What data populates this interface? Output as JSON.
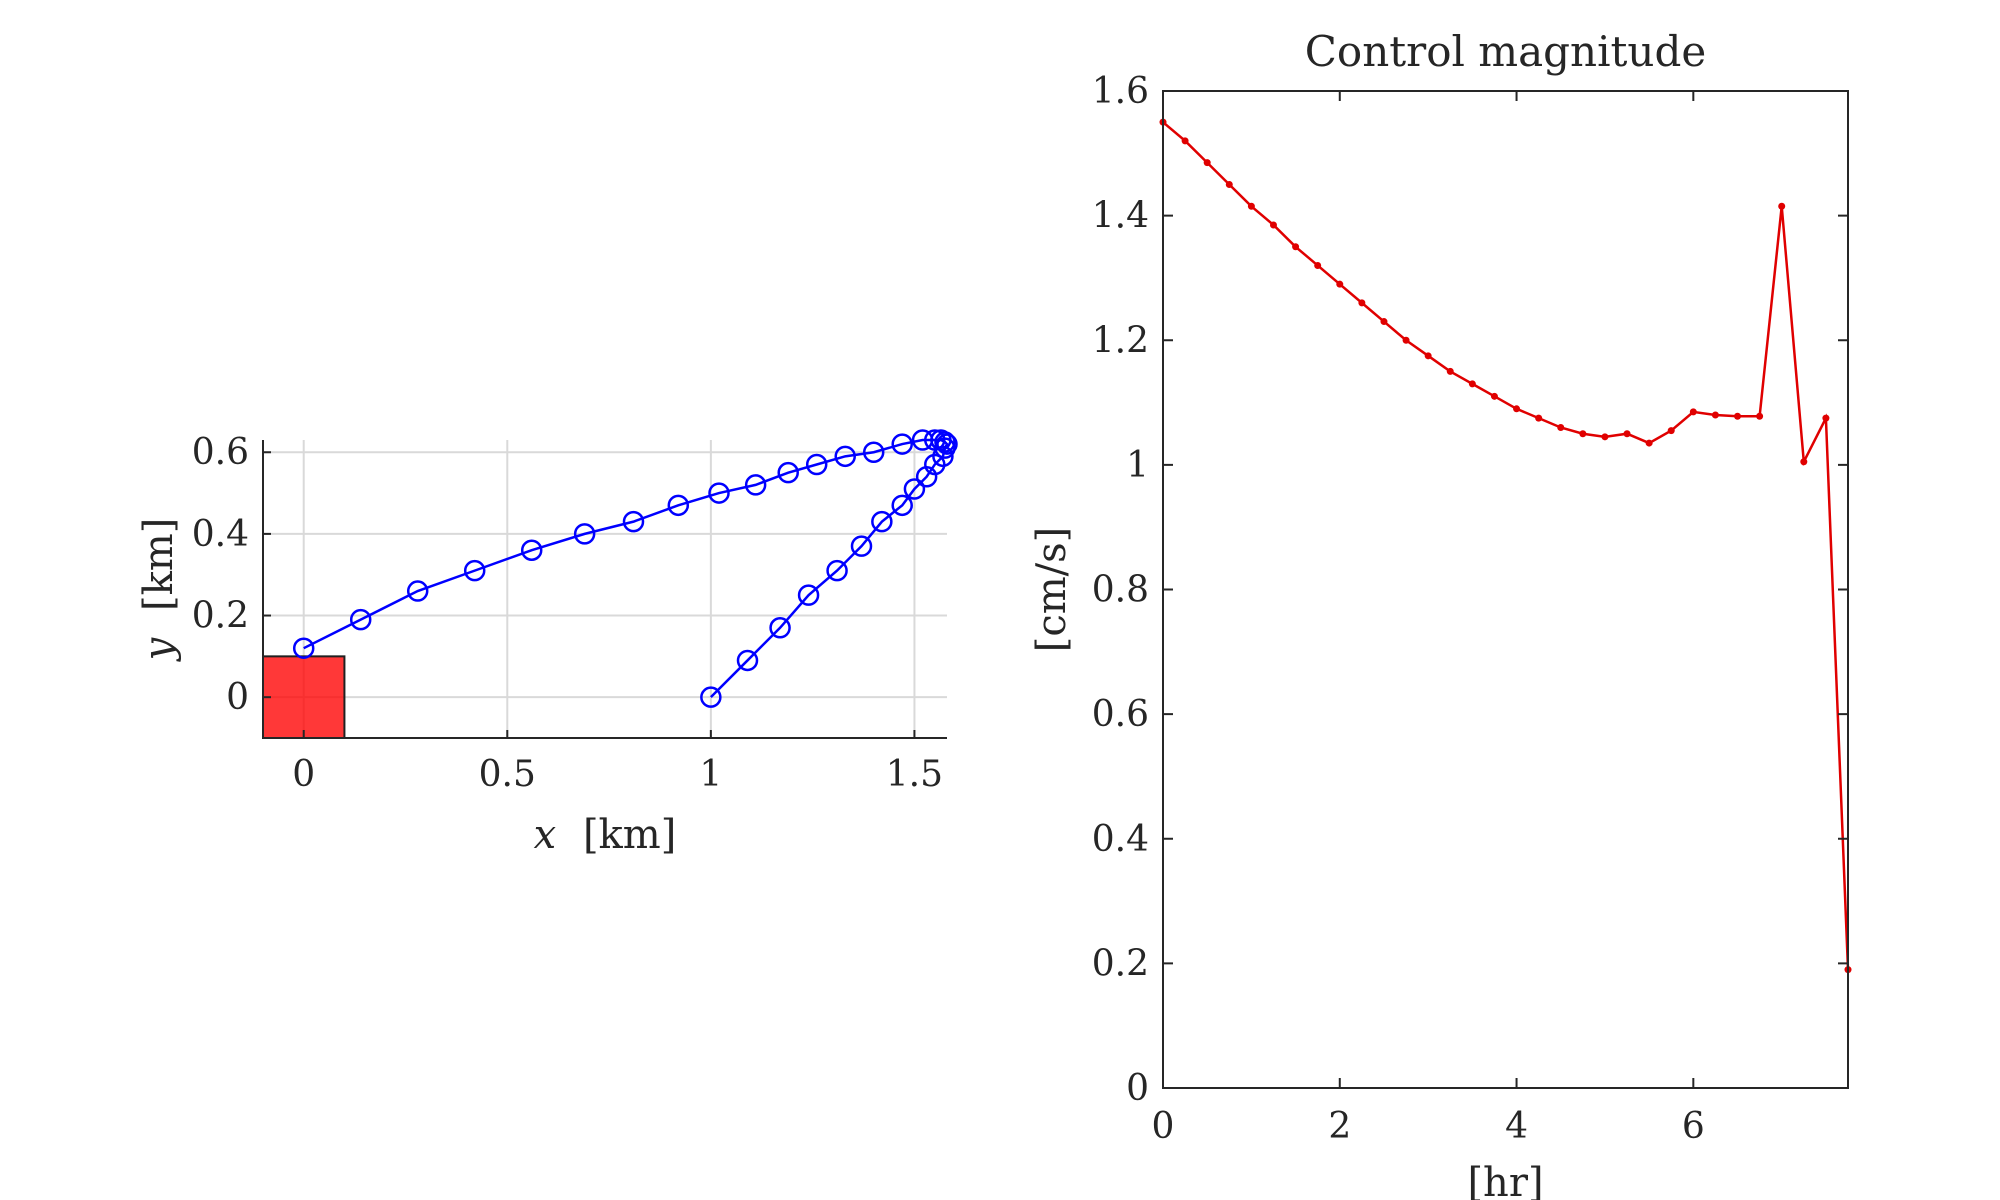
{
  "chart_data": [
    {
      "type": "line",
      "title": "",
      "xlabel_var": "x",
      "xlabel_unit": "[km]",
      "ylabel_var": "y",
      "ylabel_unit": "[km]",
      "xlim": [
        -0.1,
        1.58
      ],
      "ylim": [
        -0.1,
        0.63
      ],
      "xticks": [
        0,
        0.5,
        1,
        1.5
      ],
      "xtick_labels": [
        "0",
        "0.5",
        "1",
        "1.5"
      ],
      "yticks": [
        0,
        0.2,
        0.4,
        0.6
      ],
      "ytick_labels": [
        "0",
        "0.2",
        "0.4",
        "0.6"
      ],
      "grid": true,
      "colors": {
        "line": "#0000ff",
        "target": "#ff0000"
      },
      "target_region": {
        "x": [
          -0.1,
          0.1
        ],
        "y": [
          -0.1,
          0.1
        ]
      },
      "series": [
        {
          "marker": "circle",
          "x": [
            1.0,
            1.09,
            1.17,
            1.24,
            1.31,
            1.37,
            1.42,
            1.47,
            1.5,
            1.53,
            1.55,
            1.57,
            1.575,
            1.58,
            1.575,
            1.565,
            1.55,
            1.52,
            1.47,
            1.4,
            1.33,
            1.26,
            1.19,
            1.11,
            1.02,
            0.92,
            0.81,
            0.69,
            0.56,
            0.42,
            0.28,
            0.14,
            0.0
          ],
          "y": [
            0.0,
            0.09,
            0.17,
            0.25,
            0.31,
            0.37,
            0.43,
            0.47,
            0.51,
            0.54,
            0.57,
            0.59,
            0.61,
            0.62,
            0.625,
            0.63,
            0.63,
            0.63,
            0.62,
            0.6,
            0.59,
            0.57,
            0.55,
            0.52,
            0.5,
            0.47,
            0.43,
            0.4,
            0.36,
            0.31,
            0.26,
            0.19,
            0.12
          ]
        }
      ]
    },
    {
      "type": "line",
      "title": "Control magnitude",
      "xlabel": "[hr]",
      "ylabel": "[cm/s]",
      "xlim": [
        0,
        7.75
      ],
      "ylim": [
        0,
        1.6
      ],
      "xticks": [
        0,
        2,
        4,
        6
      ],
      "xtick_labels": [
        "0",
        "2",
        "4",
        "6"
      ],
      "yticks": [
        0,
        0.2,
        0.4,
        0.6,
        0.8,
        1,
        1.2,
        1.4,
        1.6
      ],
      "ytick_labels": [
        "0",
        "0.2",
        "0.4",
        "0.6",
        "0.8",
        "1",
        "1.2",
        "1.4",
        "1.6"
      ],
      "grid": false,
      "colors": {
        "line": "#e00000"
      },
      "series": [
        {
          "marker": "dot",
          "x": [
            0,
            0.25,
            0.5,
            0.75,
            1.0,
            1.25,
            1.5,
            1.75,
            2.0,
            2.25,
            2.5,
            2.75,
            3.0,
            3.25,
            3.5,
            3.75,
            4.0,
            4.25,
            4.5,
            4.75,
            5.0,
            5.25,
            5.5,
            5.75,
            6.0,
            6.25,
            6.5,
            6.75,
            7.0,
            7.25,
            7.5,
            7.75
          ],
          "y": [
            1.55,
            1.52,
            1.485,
            1.45,
            1.415,
            1.385,
            1.35,
            1.32,
            1.29,
            1.26,
            1.23,
            1.2,
            1.175,
            1.15,
            1.13,
            1.11,
            1.09,
            1.075,
            1.06,
            1.05,
            1.045,
            1.05,
            1.035,
            1.055,
            1.085,
            1.08,
            1.078,
            1.078,
            1.415,
            1.005,
            1.075,
            0.19
          ]
        }
      ]
    }
  ]
}
